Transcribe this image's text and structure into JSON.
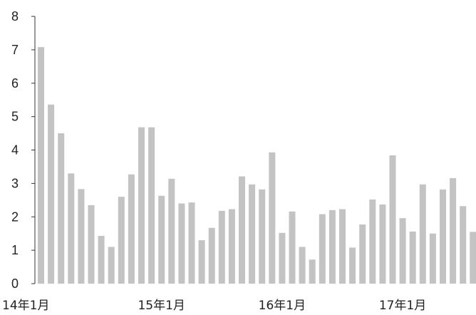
{
  "chart_data": {
    "type": "bar",
    "ylim": [
      0,
      8
    ],
    "yticks": [
      "0",
      "1",
      "2",
      "3",
      "4",
      "5",
      "6",
      "7",
      "8"
    ],
    "x_tick_labels": [
      {
        "index": 0,
        "label": "14年1月"
      },
      {
        "index": 12,
        "label": "15年1月"
      },
      {
        "index": 24,
        "label": "16年1月"
      },
      {
        "index": 36,
        "label": "17年1月"
      }
    ],
    "values": [
      7.08,
      5.36,
      4.5,
      3.3,
      2.83,
      2.35,
      1.43,
      1.1,
      2.6,
      3.27,
      4.68,
      4.68,
      2.63,
      3.14,
      2.4,
      2.43,
      1.3,
      1.67,
      2.18,
      2.23,
      3.21,
      2.97,
      2.82,
      3.93,
      1.52,
      2.16,
      1.1,
      0.72,
      2.08,
      2.2,
      2.23,
      1.08,
      1.77,
      2.52,
      2.37,
      3.84,
      1.96,
      1.56,
      2.97,
      1.5,
      2.82,
      3.16,
      2.32,
      1.55
    ],
    "bar_color": "#c3c3c3",
    "axis_color": "#333333",
    "grid": false
  }
}
